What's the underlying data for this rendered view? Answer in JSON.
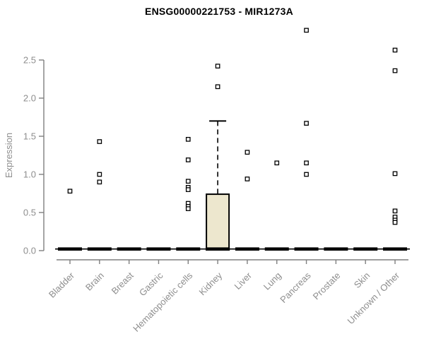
{
  "chart_data": {
    "type": "boxplot",
    "title": "ENSG00000221753 - MIR1273A",
    "ylabel": "Expression",
    "xlabel": "",
    "ylim": [
      0.0,
      2.5
    ],
    "yticks": [
      "0.0",
      "0.5",
      "1.0",
      "1.5",
      "2.0",
      "2.5"
    ],
    "grid": false,
    "legend": "none",
    "marker_style": "open-square",
    "colors": {
      "box_fill": "#ede7ce",
      "box_stroke": "#000000",
      "zero_bar": "#000000",
      "axis_line": "#7f7f7f",
      "tick_label": "#8e8e8e",
      "axis_label": "#8e8e8e",
      "title": "#000000",
      "outlier_fill": "#ffffff",
      "outlier_stroke": "#000000",
      "background": "#ffffff"
    },
    "categories": [
      "Bladder",
      "Brain",
      "Breast",
      "Gastric",
      "Hematopoietic cells",
      "Kidney",
      "Liver",
      "Lung",
      "Pancreas",
      "Prostate",
      "Skin",
      "Unknown / Other"
    ],
    "boxes": [
      {
        "category": "Bladder",
        "q1": 0,
        "median": 0,
        "q3": 0,
        "whisker_low": 0,
        "whisker_high": 0,
        "outliers": [
          0.78
        ]
      },
      {
        "category": "Brain",
        "q1": 0,
        "median": 0,
        "q3": 0,
        "whisker_low": 0,
        "whisker_high": 0,
        "outliers": [
          1.43,
          1.0,
          0.9
        ]
      },
      {
        "category": "Breast",
        "q1": 0,
        "median": 0,
        "q3": 0,
        "whisker_low": 0,
        "whisker_high": 0,
        "outliers": []
      },
      {
        "category": "Gastric",
        "q1": 0,
        "median": 0,
        "q3": 0,
        "whisker_low": 0,
        "whisker_high": 0,
        "outliers": []
      },
      {
        "category": "Hematopoietic cells",
        "q1": 0,
        "median": 0,
        "q3": 0,
        "whisker_low": 0,
        "whisker_high": 0,
        "outliers": [
          1.46,
          1.19,
          0.91,
          0.83,
          0.8,
          0.62,
          0.58,
          0.55
        ]
      },
      {
        "category": "Kidney",
        "q1": 0.02,
        "median": 0.02,
        "q3": 0.74,
        "whisker_low": 0,
        "whisker_high": 1.7,
        "outliers": [
          2.42,
          2.15
        ]
      },
      {
        "category": "Liver",
        "q1": 0,
        "median": 0,
        "q3": 0,
        "whisker_low": 0,
        "whisker_high": 0,
        "outliers": [
          1.29,
          0.94
        ]
      },
      {
        "category": "Lung",
        "q1": 0,
        "median": 0,
        "q3": 0,
        "whisker_low": 0,
        "whisker_high": 0,
        "outliers": [
          1.15
        ]
      },
      {
        "category": "Pancreas",
        "q1": 0,
        "median": 0,
        "q3": 0,
        "whisker_low": 0,
        "whisker_high": 0,
        "outliers": [
          2.89,
          1.67,
          1.15,
          1.0
        ]
      },
      {
        "category": "Prostate",
        "q1": 0,
        "median": 0,
        "q3": 0,
        "whisker_low": 0,
        "whisker_high": 0,
        "outliers": []
      },
      {
        "category": "Skin",
        "q1": 0,
        "median": 0,
        "q3": 0,
        "whisker_low": 0,
        "whisker_high": 0,
        "outliers": []
      },
      {
        "category": "Unknown / Other",
        "q1": 0,
        "median": 0,
        "q3": 0,
        "whisker_low": 0,
        "whisker_high": 0,
        "outliers": [
          2.63,
          2.36,
          1.01,
          0.52,
          0.44,
          0.4,
          0.37
        ]
      }
    ]
  }
}
